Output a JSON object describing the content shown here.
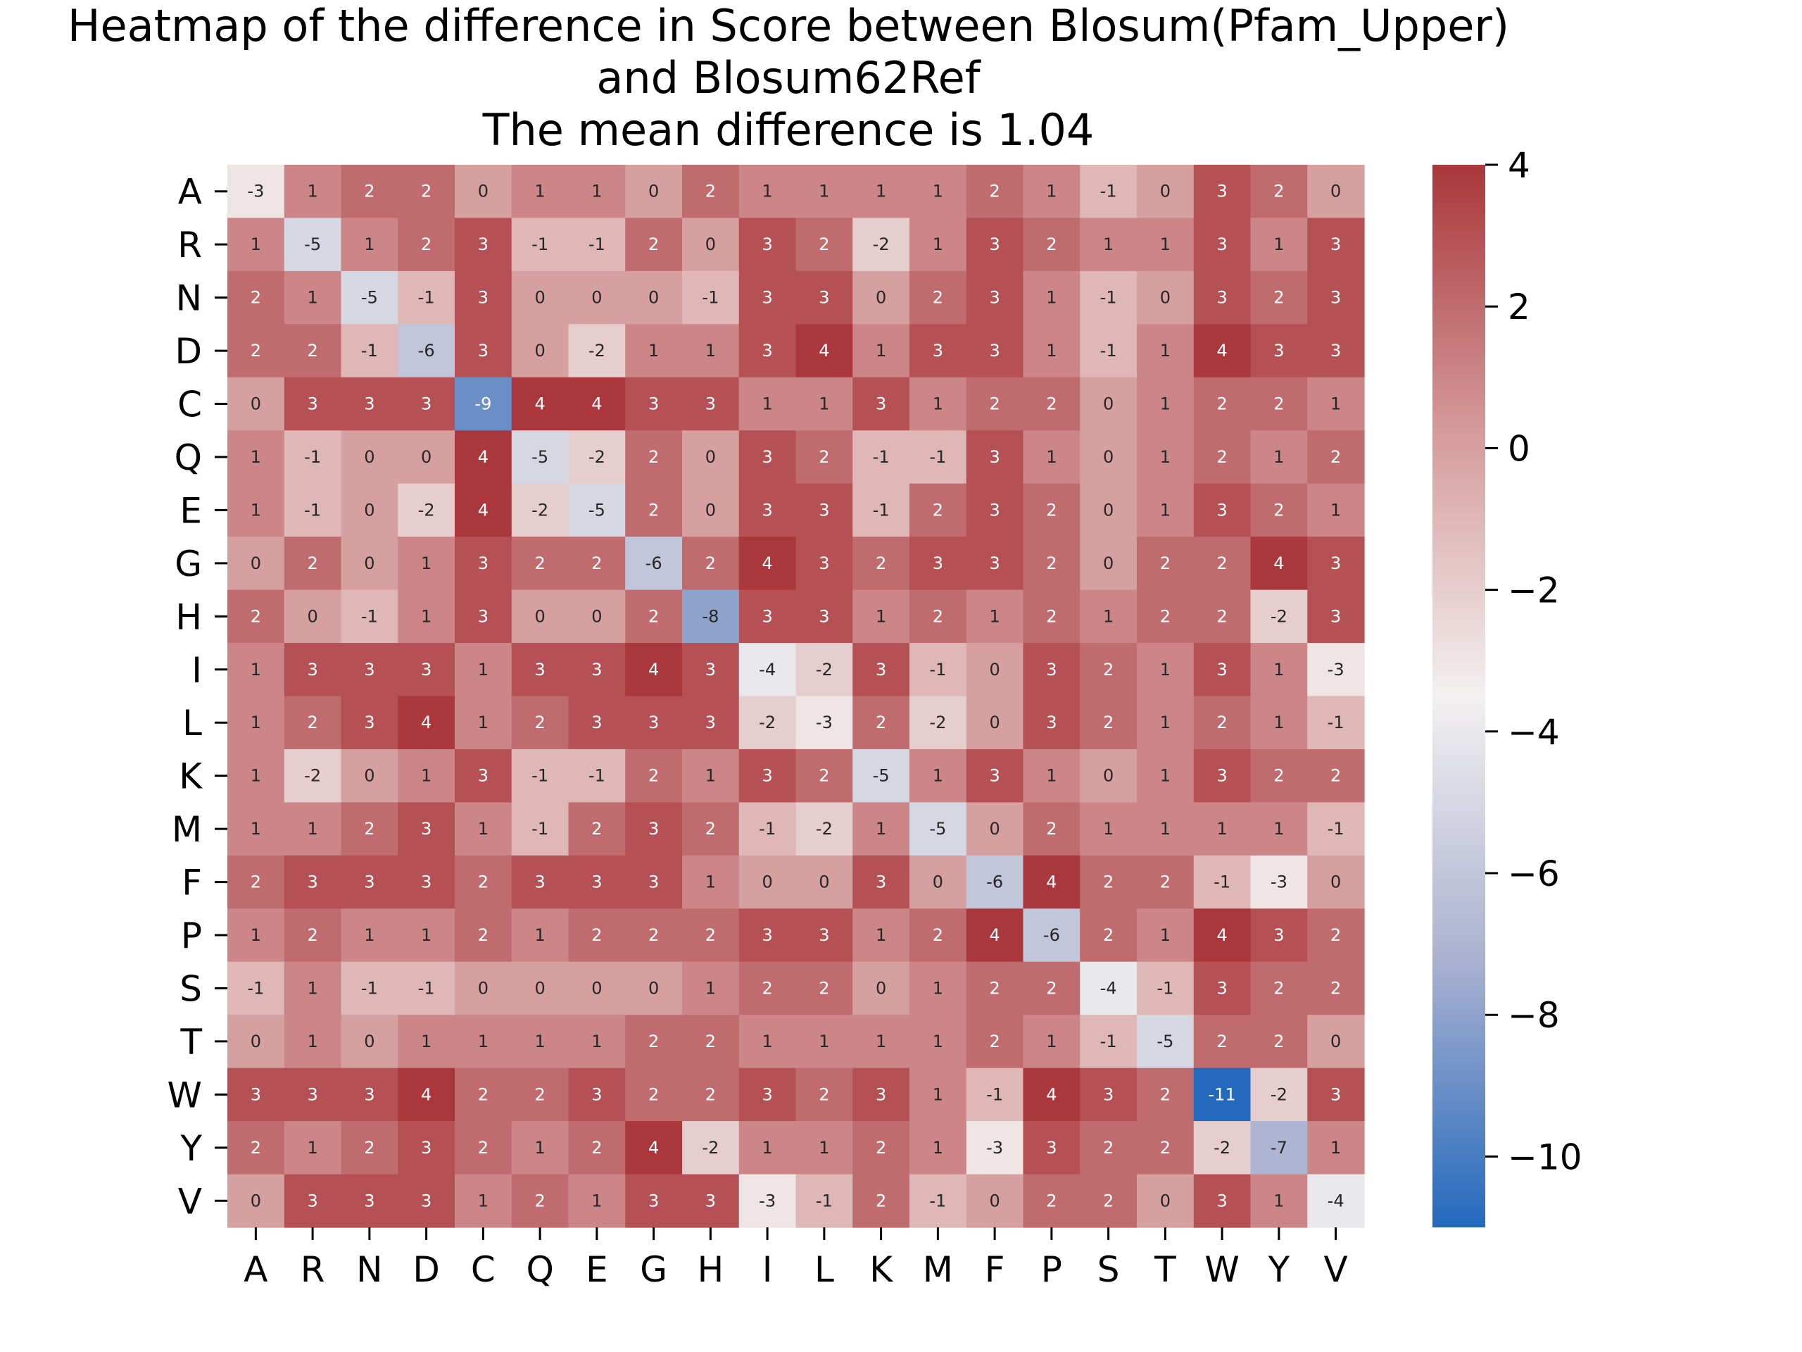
{
  "chart_data": {
    "type": "heatmap",
    "title_lines": [
      "Heatmap of the difference in Score between Blosum(Pfam_Upper)",
      "and Blosum62Ref",
      "The mean difference is 1.04"
    ],
    "x_labels": [
      "A",
      "R",
      "N",
      "D",
      "C",
      "Q",
      "E",
      "G",
      "H",
      "I",
      "L",
      "K",
      "M",
      "F",
      "P",
      "S",
      "T",
      "W",
      "Y",
      "V"
    ],
    "y_labels": [
      "A",
      "R",
      "N",
      "D",
      "C",
      "Q",
      "E",
      "G",
      "H",
      "I",
      "L",
      "K",
      "M",
      "F",
      "P",
      "S",
      "T",
      "W",
      "Y",
      "V"
    ],
    "values": [
      [
        -3,
        1,
        2,
        2,
        0,
        1,
        1,
        0,
        2,
        1,
        1,
        1,
        1,
        2,
        1,
        -1,
        0,
        3,
        2,
        0
      ],
      [
        1,
        -5,
        1,
        2,
        3,
        -1,
        -1,
        2,
        0,
        3,
        2,
        -2,
        1,
        3,
        2,
        1,
        1,
        3,
        1,
        3
      ],
      [
        2,
        1,
        -5,
        -1,
        3,
        0,
        0,
        0,
        -1,
        3,
        3,
        0,
        2,
        3,
        1,
        -1,
        0,
        3,
        2,
        3
      ],
      [
        2,
        2,
        -1,
        -6,
        3,
        0,
        -2,
        1,
        1,
        3,
        4,
        1,
        3,
        3,
        1,
        -1,
        1,
        4,
        3,
        3
      ],
      [
        0,
        3,
        3,
        3,
        -9,
        4,
        4,
        3,
        3,
        1,
        1,
        3,
        1,
        2,
        2,
        0,
        1,
        2,
        2,
        1
      ],
      [
        1,
        -1,
        0,
        0,
        4,
        -5,
        -2,
        2,
        0,
        3,
        2,
        -1,
        -1,
        3,
        1,
        0,
        1,
        2,
        1,
        2
      ],
      [
        1,
        -1,
        0,
        -2,
        4,
        -2,
        -5,
        2,
        0,
        3,
        3,
        -1,
        2,
        3,
        2,
        0,
        1,
        3,
        2,
        1
      ],
      [
        0,
        2,
        0,
        1,
        3,
        2,
        2,
        -6,
        2,
        4,
        3,
        2,
        3,
        3,
        2,
        0,
        2,
        2,
        4,
        3
      ],
      [
        2,
        0,
        -1,
        1,
        3,
        0,
        0,
        2,
        -8,
        3,
        3,
        1,
        2,
        1,
        2,
        1,
        2,
        2,
        -2,
        3
      ],
      [
        1,
        3,
        3,
        3,
        1,
        3,
        3,
        4,
        3,
        -4,
        -2,
        3,
        -1,
        0,
        3,
        2,
        1,
        3,
        1,
        -3
      ],
      [
        1,
        2,
        3,
        4,
        1,
        2,
        3,
        3,
        3,
        -2,
        -3,
        2,
        -2,
        0,
        3,
        2,
        1,
        2,
        1,
        -1
      ],
      [
        1,
        -2,
        0,
        1,
        3,
        -1,
        -1,
        2,
        1,
        3,
        2,
        -5,
        1,
        3,
        1,
        0,
        1,
        3,
        2,
        2
      ],
      [
        1,
        1,
        2,
        3,
        1,
        -1,
        2,
        3,
        2,
        -1,
        -2,
        1,
        -5,
        0,
        2,
        1,
        1,
        1,
        1,
        -1
      ],
      [
        2,
        3,
        3,
        3,
        2,
        3,
        3,
        3,
        1,
        0,
        0,
        3,
        0,
        -6,
        4,
        2,
        2,
        -1,
        -3,
        0
      ],
      [
        1,
        2,
        1,
        1,
        2,
        1,
        2,
        2,
        2,
        3,
        3,
        1,
        2,
        4,
        -6,
        2,
        1,
        4,
        3,
        2
      ],
      [
        -1,
        1,
        -1,
        -1,
        0,
        0,
        0,
        0,
        1,
        2,
        2,
        0,
        1,
        2,
        2,
        -4,
        -1,
        3,
        2,
        2
      ],
      [
        0,
        1,
        0,
        1,
        1,
        1,
        1,
        2,
        2,
        1,
        1,
        1,
        1,
        2,
        1,
        -1,
        -5,
        2,
        2,
        0
      ],
      [
        3,
        3,
        3,
        4,
        2,
        2,
        3,
        2,
        2,
        3,
        2,
        3,
        1,
        -1,
        4,
        3,
        2,
        -11,
        -2,
        3
      ],
      [
        2,
        1,
        2,
        3,
        2,
        1,
        2,
        4,
        -2,
        1,
        1,
        2,
        1,
        -3,
        3,
        2,
        2,
        -2,
        -7,
        1
      ],
      [
        0,
        3,
        3,
        3,
        1,
        2,
        1,
        3,
        3,
        -3,
        -1,
        2,
        -1,
        0,
        2,
        2,
        0,
        3,
        1,
        -4
      ]
    ],
    "colorbar": {
      "vmin": -11,
      "vmax": 4,
      "ticks": [
        4,
        2,
        0,
        -2,
        -4,
        -6,
        -8,
        -10
      ],
      "tick_labels": [
        "4",
        "2",
        "0",
        "−2",
        "−4",
        "−6",
        "−8",
        "−10"
      ],
      "colormap": "vlag",
      "colors": [
        "#2369bd",
        "#a9b1d0",
        "#f3f0f0",
        "#d59a9a",
        "#a9373b"
      ]
    },
    "xlabel": "",
    "ylabel": ""
  }
}
